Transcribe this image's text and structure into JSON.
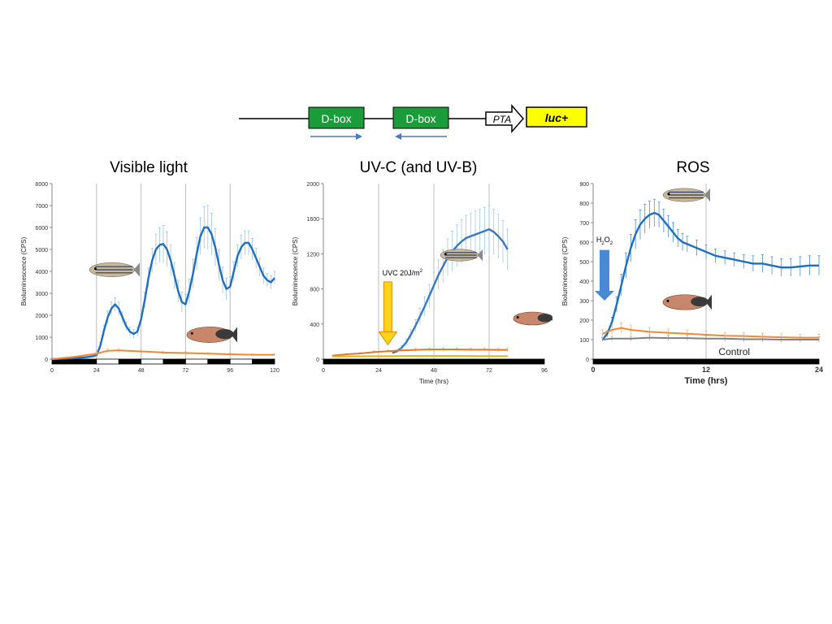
{
  "construct": {
    "elements": [
      {
        "label": "D-box",
        "color": "#1a9c3a",
        "arrow": "right"
      },
      {
        "label": "D-box",
        "color": "#1a9c3a",
        "arrow": "left"
      },
      {
        "label": "PTA"
      },
      {
        "label": "luc+",
        "color": "#ffff00"
      }
    ],
    "arrow_color": "#4a78c2"
  },
  "chart_data": [
    {
      "type": "line",
      "title": "Visible light",
      "xlabel": "",
      "ylabel": "Bioluminescence (CPS)",
      "xlim": [
        0,
        120
      ],
      "ylim": [
        0,
        8000
      ],
      "xticks": [
        0,
        24,
        48,
        72,
        96,
        120
      ],
      "yticks": [
        0,
        1000,
        2000,
        3000,
        4000,
        5000,
        6000,
        7000,
        8000
      ],
      "vlines": [
        24,
        48,
        72,
        96
      ],
      "lightbar": [
        {
          "start": 0,
          "end": 24,
          "dark": true
        },
        {
          "start": 24,
          "end": 36,
          "dark": false
        },
        {
          "start": 36,
          "end": 48,
          "dark": true
        },
        {
          "start": 48,
          "end": 60,
          "dark": false
        },
        {
          "start": 60,
          "end": 72,
          "dark": true
        },
        {
          "start": 72,
          "end": 84,
          "dark": false
        },
        {
          "start": 84,
          "end": 96,
          "dark": true
        },
        {
          "start": 96,
          "end": 108,
          "dark": false
        },
        {
          "start": 108,
          "end": 120,
          "dark": true
        }
      ],
      "series": [
        {
          "color": "#1f6fbf",
          "errcolor": "#9cc3e8",
          "x": [
            0,
            6,
            12,
            18,
            22,
            24,
            26,
            28,
            30,
            32,
            34,
            36,
            38,
            40,
            42,
            44,
            46,
            48,
            50,
            52,
            54,
            56,
            58,
            60,
            62,
            64,
            66,
            68,
            70,
            72,
            74,
            76,
            78,
            80,
            82,
            84,
            86,
            88,
            90,
            92,
            94,
            96,
            98,
            100,
            102,
            104,
            106,
            108,
            110,
            112,
            114,
            116,
            118,
            120
          ],
          "y": [
            0,
            20,
            40,
            80,
            130,
            180,
            600,
            1300,
            1900,
            2300,
            2500,
            2300,
            1900,
            1500,
            1250,
            1150,
            1250,
            1800,
            2700,
            3700,
            4500,
            5000,
            5200,
            5250,
            5000,
            4500,
            3800,
            3100,
            2600,
            2500,
            3100,
            3900,
            4800,
            5600,
            6000,
            6000,
            5700,
            5100,
            4300,
            3600,
            3200,
            3300,
            4000,
            4700,
            5100,
            5300,
            5300,
            5000,
            4600,
            4200,
            3800,
            3600,
            3500,
            3700
          ],
          "err": [
            0,
            0,
            0,
            0,
            0,
            50,
            150,
            250,
            300,
            300,
            300,
            300,
            250,
            200,
            200,
            200,
            200,
            250,
            350,
            450,
            550,
            700,
            800,
            850,
            800,
            700,
            600,
            500,
            450,
            450,
            550,
            650,
            750,
            850,
            950,
            1000,
            950,
            850,
            700,
            600,
            500,
            450,
            450,
            500,
            550,
            550,
            550,
            500,
            450,
            400,
            350,
            300,
            300,
            300
          ]
        },
        {
          "color": "#f08a30",
          "errcolor": "#f5c09a",
          "x": [
            0,
            12,
            24,
            30,
            36,
            48,
            60,
            72,
            84,
            96,
            108,
            120
          ],
          "y": [
            0,
            100,
            250,
            380,
            400,
            350,
            300,
            280,
            250,
            220,
            200,
            200
          ],
          "err": [
            0,
            20,
            60,
            80,
            80,
            70,
            60,
            60,
            50,
            50,
            40,
            40
          ]
        }
      ]
    },
    {
      "type": "line",
      "title": "UV-C (and UV-B)",
      "xlabel": "Time (hrs)",
      "ylabel": "Bioluminescence (CPS)",
      "xlim": [
        0,
        96
      ],
      "ylim": [
        0,
        2000
      ],
      "xticks": [
        0,
        24,
        48,
        72,
        96
      ],
      "yticks": [
        0,
        400,
        800,
        1200,
        1600,
        2000
      ],
      "vlines": [
        24,
        48,
        72
      ],
      "lightbar": [
        {
          "start": 0,
          "end": 96,
          "dark": true
        }
      ],
      "annotation": {
        "text": "UVC 20J/m",
        "sup": "2"
      },
      "series": [
        {
          "color": "#3a78c0",
          "errcolor": "#a5c8ea",
          "x": [
            30,
            32,
            34,
            36,
            38,
            40,
            42,
            44,
            46,
            48,
            50,
            52,
            54,
            56,
            58,
            60,
            62,
            64,
            66,
            68,
            70,
            72,
            74,
            76,
            78,
            80
          ],
          "y": [
            70,
            90,
            130,
            190,
            280,
            380,
            490,
            600,
            720,
            840,
            960,
            1060,
            1160,
            1230,
            1290,
            1340,
            1380,
            1400,
            1420,
            1440,
            1460,
            1480,
            1450,
            1400,
            1340,
            1250
          ],
          "err": [
            10,
            15,
            25,
            40,
            55,
            70,
            90,
            110,
            130,
            150,
            170,
            190,
            210,
            230,
            240,
            250,
            260,
            260,
            270,
            270,
            270,
            270,
            260,
            250,
            240,
            230
          ]
        },
        {
          "color": "#e07a2a",
          "errcolor": "#f2b585",
          "x": [
            4,
            10,
            16,
            22,
            28,
            34,
            40,
            46,
            52,
            58,
            64,
            70,
            76,
            80
          ],
          "y": [
            40,
            55,
            65,
            80,
            90,
            100,
            105,
            110,
            110,
            110,
            108,
            108,
            105,
            105
          ],
          "err": [
            5,
            8,
            10,
            12,
            14,
            16,
            18,
            20,
            20,
            20,
            20,
            20,
            20,
            20
          ]
        },
        {
          "color": "#d9b420",
          "errcolor": "#ecd97a",
          "x": [
            4,
            16,
            28,
            40,
            52,
            64,
            76,
            80
          ],
          "y": [
            30,
            32,
            34,
            36,
            36,
            35,
            34,
            34
          ],
          "err": [
            3,
            4,
            4,
            5,
            5,
            5,
            5,
            5
          ]
        }
      ]
    },
    {
      "type": "line",
      "title": "ROS",
      "xlabel": "Time (hrs)",
      "ylabel": "Bioluminescence (CPS)",
      "xlim": [
        0,
        24
      ],
      "ylim": [
        0,
        900
      ],
      "xticks": [
        0,
        12,
        24
      ],
      "yticks": [
        0,
        100,
        200,
        300,
        400,
        500,
        600,
        700,
        800,
        900
      ],
      "vlines": [
        12
      ],
      "lightbar": [
        {
          "start": 0,
          "end": 24,
          "dark": true
        }
      ],
      "annotation": {
        "text": "H",
        "sub": "2",
        "text2": "O",
        "sub2": "2"
      },
      "control_label": "Control",
      "series": [
        {
          "color": "#1f6fbf",
          "errcolor": "#4a90d9",
          "x": [
            1,
            1.5,
            2,
            2.5,
            3,
            3.5,
            4,
            4.5,
            5,
            5.5,
            6,
            6.5,
            7,
            7.5,
            8,
            8.5,
            9,
            9.5,
            10,
            11,
            12,
            13,
            14,
            15,
            16,
            17,
            18,
            19,
            20,
            21,
            22,
            23,
            24
          ],
          "y": [
            100,
            130,
            190,
            280,
            380,
            480,
            570,
            640,
            690,
            720,
            740,
            750,
            740,
            710,
            680,
            650,
            620,
            600,
            590,
            570,
            550,
            530,
            520,
            510,
            500,
            490,
            490,
            480,
            470,
            470,
            475,
            480,
            480
          ],
          "err": [
            10,
            15,
            25,
            40,
            55,
            65,
            70,
            75,
            75,
            75,
            70,
            70,
            65,
            60,
            55,
            50,
            45,
            45,
            40,
            40,
            35,
            35,
            35,
            35,
            35,
            40,
            45,
            45,
            45,
            45,
            50,
            50,
            50
          ]
        },
        {
          "color": "#f08a30",
          "errcolor": "#f5b07a",
          "x": [
            1,
            2,
            3,
            4,
            6,
            8,
            10,
            12,
            14,
            16,
            18,
            20,
            22,
            24
          ],
          "y": [
            130,
            150,
            160,
            150,
            140,
            135,
            130,
            125,
            120,
            118,
            115,
            112,
            110,
            110
          ],
          "err": [
            20,
            25,
            25,
            25,
            22,
            20,
            20,
            18,
            18,
            18,
            18,
            18,
            18,
            18
          ]
        },
        {
          "color": "#808080",
          "errcolor": "#b0b0b0",
          "x": [
            1,
            2,
            4,
            6,
            8,
            10,
            12,
            14,
            16,
            18,
            20,
            22,
            24
          ],
          "y": [
            100,
            105,
            105,
            110,
            108,
            108,
            105,
            105,
            102,
            102,
            100,
            100,
            100
          ],
          "err": [
            10,
            12,
            12,
            14,
            14,
            14,
            14,
            14,
            14,
            14,
            14,
            14,
            14
          ]
        }
      ]
    }
  ]
}
